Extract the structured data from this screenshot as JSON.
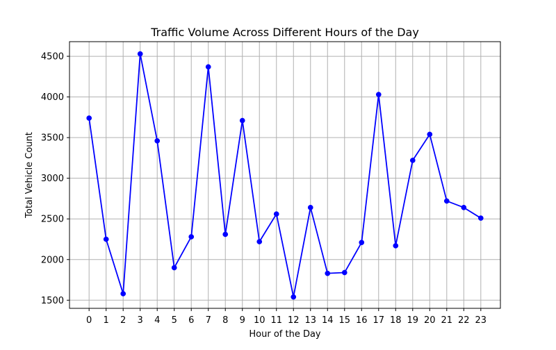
{
  "chart_data": {
    "type": "line",
    "title": "Traffic Volume Across Different Hours of the Day",
    "xlabel": "Hour of the Day",
    "ylabel": "Total Vehicle Count",
    "x": [
      0,
      1,
      2,
      3,
      4,
      5,
      6,
      7,
      8,
      9,
      10,
      11,
      12,
      13,
      14,
      15,
      16,
      17,
      18,
      19,
      20,
      21,
      22,
      23
    ],
    "series": [
      {
        "values": [
          3740,
          2250,
          1580,
          4530,
          3460,
          1900,
          2280,
          4370,
          2310,
          3710,
          2220,
          2560,
          1540,
          2640,
          1830,
          1840,
          2210,
          4030,
          2170,
          3220,
          3540,
          2720,
          2640,
          2510
        ],
        "color": "#0000ff",
        "marker": "circle"
      }
    ],
    "xlim": [
      -1.15,
      24.15
    ],
    "ylim": [
      1400,
      4680
    ],
    "xticks": [
      "0",
      "1",
      "2",
      "3",
      "4",
      "5",
      "6",
      "7",
      "8",
      "9",
      "10",
      "11",
      "12",
      "13",
      "14",
      "15",
      "16",
      "17",
      "18",
      "19",
      "20",
      "21",
      "22",
      "23"
    ],
    "yticks": [
      1500,
      2000,
      2500,
      3000,
      3500,
      4000,
      4500
    ],
    "grid": true,
    "legend": null
  }
}
